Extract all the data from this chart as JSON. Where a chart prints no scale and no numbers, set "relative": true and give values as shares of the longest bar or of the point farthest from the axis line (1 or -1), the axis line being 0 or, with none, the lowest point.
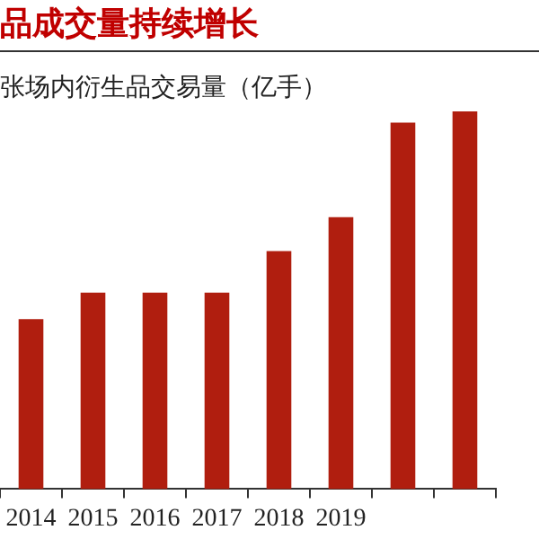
{
  "chart_data": {
    "type": "bar",
    "title": "品成交量持续增长",
    "subtitle": "张场内衍生品交易量（亿手）",
    "relative": true,
    "categories": [
      "2014",
      "2015",
      "2016",
      "2017",
      "2018",
      "2019",
      null,
      null
    ],
    "values": [
      0.45,
      0.52,
      0.52,
      0.52,
      0.63,
      0.72,
      0.97,
      1
    ],
    "color": "#b01e0f",
    "grid": false,
    "legend": false
  }
}
